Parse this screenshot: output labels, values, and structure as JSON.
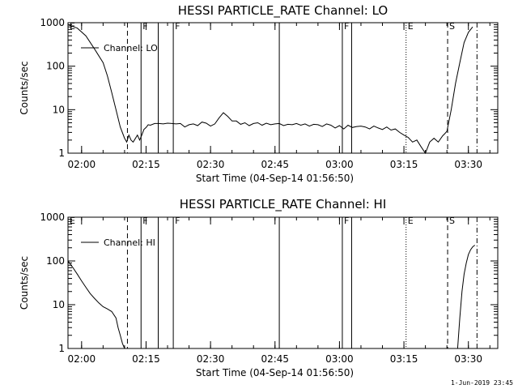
{
  "chart_data": [
    {
      "type": "line",
      "title": "HESSI PARTICLE_RATE Channel: LO",
      "xlabel": "Start Time (04-Sep-14 01:56:50)",
      "ylabel": "Counts/sec",
      "yscale": "log",
      "xlim": [
        "01:56:50",
        "03:36:50"
      ],
      "ylim": [
        1,
        1000
      ],
      "x_ticks": [
        "02:00",
        "02:15",
        "02:30",
        "02:45",
        "03:00",
        "03:15",
        "03:30"
      ],
      "y_ticks": [
        "1",
        "10",
        "100",
        "1000"
      ],
      "legend": {
        "position": "top-left",
        "entries": [
          "Channel: LO"
        ]
      },
      "series": [
        {
          "name": "Channel: LO",
          "x": [
            "01:56:50",
            "01:59:00",
            "02:01:00",
            "02:03:00",
            "02:05:00",
            "02:06:00",
            "02:07:00",
            "02:08:00",
            "02:09:00",
            "02:10:00",
            "02:10:30",
            "02:11:00",
            "02:11:30",
            "02:12:00",
            "02:13:00",
            "02:13:30",
            "02:14:00",
            "02:14:30",
            "02:15:00",
            "02:15:30",
            "02:16:00",
            "02:17:00",
            "02:18:00",
            "02:19:00",
            "02:20:00",
            "02:21:00",
            "02:22:00",
            "02:23:00",
            "02:24:00",
            "02:25:00",
            "02:26:00",
            "02:27:00",
            "02:28:00",
            "02:29:00",
            "02:30:00",
            "02:31:00",
            "02:32:00",
            "02:33:00",
            "02:34:00",
            "02:35:00",
            "02:36:00",
            "02:37:00",
            "02:38:00",
            "02:39:00",
            "02:40:00",
            "02:41:00",
            "02:42:00",
            "02:43:00",
            "02:44:00",
            "02:45:00",
            "02:46:00",
            "02:47:00",
            "02:48:00",
            "02:49:00",
            "02:50:00",
            "02:51:00",
            "02:52:00",
            "02:53:00",
            "02:54:00",
            "02:55:00",
            "02:56:00",
            "02:57:00",
            "02:58:00",
            "02:59:00",
            "03:00:00",
            "03:01:00",
            "03:02:00",
            "03:03:00",
            "03:04:00",
            "03:05:00",
            "03:06:00",
            "03:07:00",
            "03:08:00",
            "03:09:00",
            "03:10:00",
            "03:11:00",
            "03:12:00",
            "03:13:00",
            "03:14:00",
            "03:15:00",
            "03:16:00",
            "03:17:00",
            "03:18:00",
            "03:19:00",
            "03:20:00",
            "03:21:00",
            "03:22:00",
            "03:23:00",
            "03:24:00",
            "03:24:30",
            "03:25:00",
            "03:26:00",
            "03:27:00",
            "03:28:00",
            "03:29:00",
            "03:30:00",
            "03:31:00"
          ],
          "values": [
            900,
            750,
            500,
            250,
            120,
            60,
            25,
            10,
            4,
            2.2,
            1.8,
            2.6,
            2.0,
            1.8,
            2.6,
            2.0,
            2.6,
            3.5,
            3.9,
            4.5,
            4.4,
            4.8,
            4.8,
            4.7,
            4.9,
            4.8,
            4.7,
            4.8,
            4.0,
            4.5,
            4.7,
            4.3,
            5.2,
            4.9,
            4.2,
            4.7,
            6.5,
            8.5,
            7.0,
            5.5,
            5.5,
            4.6,
            5.0,
            4.3,
            4.8,
            5.0,
            4.4,
            4.9,
            4.5,
            4.7,
            4.8,
            4.3,
            4.6,
            4.5,
            4.8,
            4.4,
            4.7,
            4.2,
            4.6,
            4.5,
            4.1,
            4.7,
            4.4,
            3.8,
            4.3,
            3.6,
            4.4,
            3.9,
            4.1,
            4.2,
            4.0,
            3.6,
            4.2,
            3.8,
            3.5,
            4.0,
            3.4,
            3.6,
            3.0,
            2.6,
            2.3,
            1.8,
            2.0,
            1.4,
            0.9,
            1.8,
            2.2,
            1.8,
            2.5,
            2.8,
            3.2,
            10,
            40,
            120,
            350,
            600,
            800
          ]
        }
      ],
      "markers": [
        {
          "label": "E",
          "time": "01:56:50",
          "style": "dotted"
        },
        {
          "label": "F",
          "time": "02:13:50",
          "style": "solid"
        },
        {
          "label": "F",
          "time": "02:21:20",
          "style": "solid"
        },
        {
          "label": "F",
          "time": "03:00:40",
          "style": "solid"
        },
        {
          "label": "E",
          "time": "03:15:30",
          "style": "dotted"
        },
        {
          "label": "S",
          "time": "03:25:10",
          "style": "dashed"
        }
      ],
      "vertical_lines": [
        {
          "time": "02:10:40",
          "style": "dashed"
        },
        {
          "time": "02:13:50",
          "style": "solid"
        },
        {
          "time": "02:17:50",
          "style": "solid"
        },
        {
          "time": "02:21:20",
          "style": "solid"
        },
        {
          "time": "02:46:00",
          "style": "solid"
        },
        {
          "time": "03:00:40",
          "style": "solid"
        },
        {
          "time": "03:02:50",
          "style": "solid"
        },
        {
          "time": "03:15:30",
          "style": "dotted"
        },
        {
          "time": "03:25:10",
          "style": "dashed"
        },
        {
          "time": "03:32:00",
          "style": "dash-dot"
        }
      ]
    },
    {
      "type": "line",
      "title": "HESSI PARTICLE_RATE Channel: HI",
      "xlabel": "Start Time (04-Sep-14 01:56:50)",
      "ylabel": "Counts/sec",
      "yscale": "log",
      "xlim": [
        "01:56:50",
        "03:36:50"
      ],
      "ylim": [
        1,
        1000
      ],
      "x_ticks": [
        "02:00",
        "02:15",
        "02:30",
        "02:45",
        "03:00",
        "03:15",
        "03:30"
      ],
      "y_ticks": [
        "1",
        "10",
        "100",
        "1000"
      ],
      "legend": {
        "position": "top-left",
        "entries": [
          "Channel: HI"
        ]
      },
      "series": [
        {
          "name": "Channel: HI",
          "x": [
            "01:56:50",
            "01:58:00",
            "01:59:00",
            "02:00:00",
            "02:01:00",
            "02:02:00",
            "02:03:00",
            "02:04:00",
            "02:05:00",
            "02:06:00",
            "02:07:00",
            "02:08:00",
            "02:08:30",
            "02:09:00",
            "02:09:30",
            "02:10:00",
            "02:10:20",
            "03:27:00",
            "03:27:30",
            "03:28:00",
            "03:28:30",
            "03:29:00",
            "03:29:30",
            "03:30:00",
            "03:30:30",
            "03:31:00",
            "03:31:30"
          ],
          "values": [
            100,
            70,
            50,
            35,
            25,
            18,
            14,
            11,
            9,
            8,
            7,
            5,
            3,
            2,
            1.3,
            0.9,
            0.5,
            0.5,
            1.0,
            5,
            20,
            50,
            90,
            140,
            180,
            210,
            230
          ]
        }
      ],
      "markers": [
        {
          "label": "E",
          "time": "01:56:50",
          "style": "dotted"
        },
        {
          "label": "F",
          "time": "02:13:50",
          "style": "solid"
        },
        {
          "label": "F",
          "time": "02:21:20",
          "style": "solid"
        },
        {
          "label": "F",
          "time": "03:00:40",
          "style": "solid"
        },
        {
          "label": "E",
          "time": "03:15:30",
          "style": "dotted"
        },
        {
          "label": "S",
          "time": "03:25:10",
          "style": "dashed"
        }
      ],
      "vertical_lines": [
        {
          "time": "02:10:40",
          "style": "dashed"
        },
        {
          "time": "02:13:50",
          "style": "solid"
        },
        {
          "time": "02:17:50",
          "style": "solid"
        },
        {
          "time": "02:21:20",
          "style": "solid"
        },
        {
          "time": "02:46:00",
          "style": "solid"
        },
        {
          "time": "03:00:40",
          "style": "solid"
        },
        {
          "time": "03:02:50",
          "style": "solid"
        },
        {
          "time": "03:15:30",
          "style": "dotted"
        },
        {
          "time": "03:25:10",
          "style": "dashed"
        },
        {
          "time": "03:32:00",
          "style": "dash-dot"
        }
      ]
    }
  ],
  "footer": {
    "date": "1-Jun-2019 23:45"
  },
  "colors": {
    "line": "#000000",
    "background": "#ffffff"
  }
}
